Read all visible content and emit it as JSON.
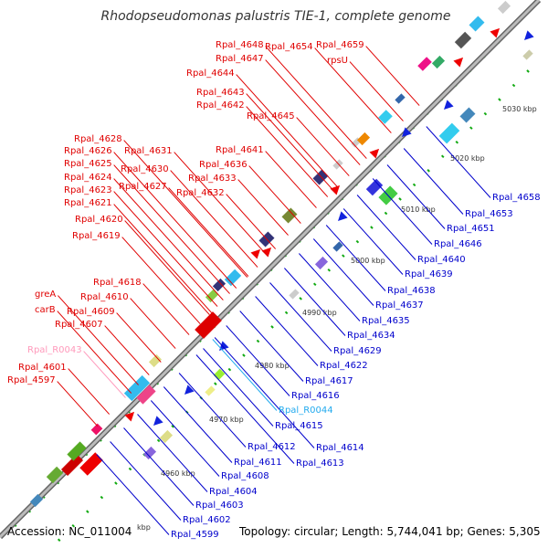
{
  "title": "Rhodopseudomonas palustris TIE-1, complete genome",
  "accession": "Accession: NC_011004",
  "topology": "Topology: circular; Length: 5,744,041 bp; Genes: 5,305",
  "colors": {
    "left_label": "#e00000",
    "left_rna_label": "#ff99bb",
    "right_label": "#0000cc",
    "right_rna_label": "#22aaee",
    "backbone": "#999999",
    "tick": "#11aa11"
  },
  "scale_ticks": [
    "4960 kbp",
    "4970 kbp",
    "4980 kbp",
    "4990 kbp",
    "5000 kbp",
    "5010 kbp",
    "5020 kbp",
    "5030 kbp",
    "kbp"
  ],
  "left_labels": [
    "Rpal_4648",
    "Rpal_4654",
    "Rpal_4659",
    "Rpal_4647",
    "rpsU",
    "Rpal_4644",
    "Rpal_4643",
    "Rpal_4642",
    "Rpal_4645",
    "Rpal_4641",
    "Rpal_4636",
    "Rpal_4628",
    "Rpal_4626",
    "Rpal_4631",
    "Rpal_4625",
    "Rpal_4630",
    "Rpal_4624",
    "Rpal_4633",
    "Rpal_4623",
    "Rpal_4627",
    "Rpal_4632",
    "Rpal_4621",
    "Rpal_4620",
    "Rpal_4619",
    "Rpal_4618",
    "greA",
    "Rpal_4610",
    "carB",
    "Rpal_4609",
    "Rpal_4607",
    "Rpal_R0043",
    "Rpal_4601",
    "Rpal_4597"
  ],
  "right_labels": [
    "Rpal_4658",
    "Rpal_4653",
    "Rpal_4651",
    "Rpal_4646",
    "Rpal_4640",
    "Rpal_4639",
    "Rpal_4638",
    "Rpal_4637",
    "Rpal_4635",
    "Rpal_4634",
    "Rpal_4629",
    "Rpal_4622",
    "Rpal_4617",
    "Rpal_4616",
    "Rpal_R0044",
    "Rpal_4615",
    "Rpal_4614",
    "Rpal_4612",
    "Rpal_4613",
    "Rpal_4611",
    "Rpal_4608",
    "Rpal_4604",
    "Rpal_4603",
    "Rpal_4602",
    "Rpal_4599"
  ]
}
